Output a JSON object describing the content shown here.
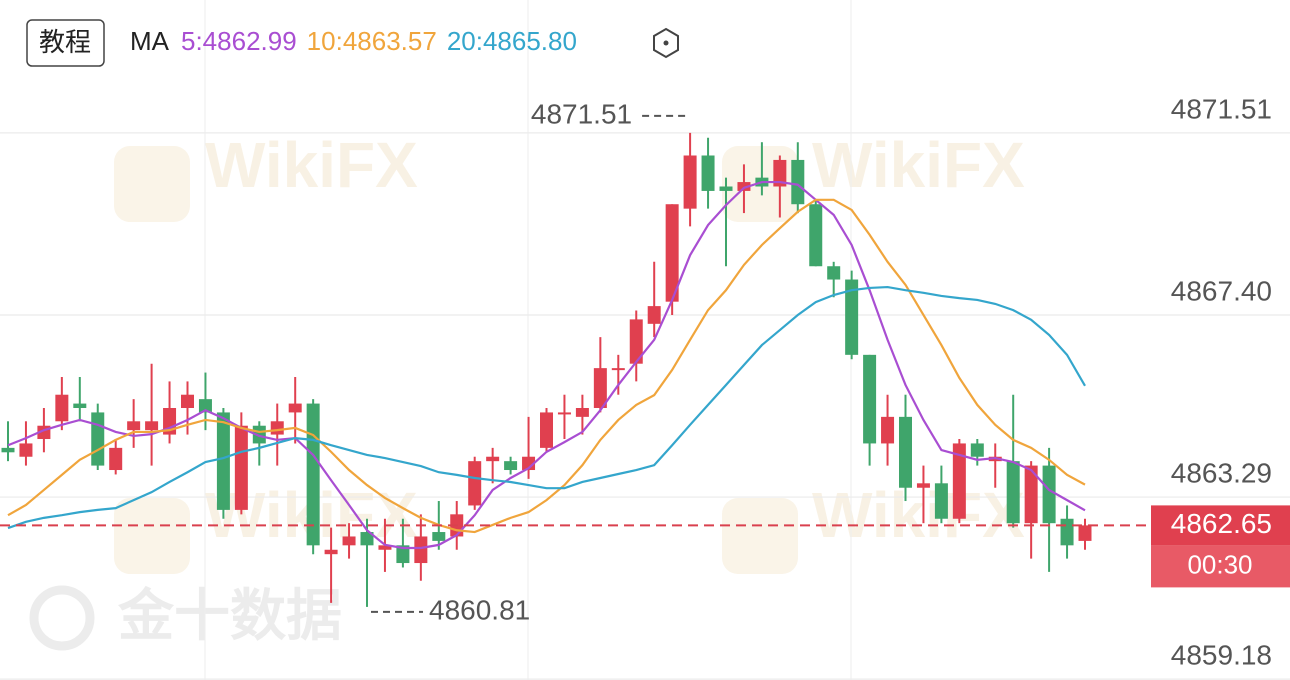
{
  "chart_data": {
    "type": "candlestick",
    "button": "教程",
    "indicator": "MA",
    "watermark": "WikiFX",
    "watermark_source": "金十数据",
    "up_color": "#e0404f",
    "down_color": "#3fa56b",
    "ylim": [
      4859.16,
      4874.51
    ],
    "yticks": [
      4859.18,
      4863.29,
      {
        "value": 4867.4,
        "label": "4867.40"
      },
      4871.51
    ],
    "grid": true,
    "high_marker": 4871.51,
    "low_marker": 4860.81,
    "last_price": 4862.65,
    "countdown": "00:30",
    "open": [
      4864.4,
      4864.2,
      4864.6,
      4865.0,
      4865.4,
      4865.2,
      4863.9,
      4864.8,
      4864.8,
      4864.7,
      4865.3,
      4865.5,
      4865.2,
      4863.0,
      4864.9,
      4864.7,
      4865.2,
      4865.4,
      4862.0,
      4862.2,
      4862.5,
      4862.1,
      4862.2,
      4861.8,
      4862.5,
      4862.4,
      4863.1,
      4864.1,
      4864.1,
      4863.9,
      4864.4,
      4865.2,
      4865.1,
      4865.3,
      4866.2,
      4866.3,
      4867.2,
      4867.7,
      4869.8,
      4871.0,
      4870.3,
      4870.2,
      4870.5,
      4870.3,
      4870.9,
      4869.9,
      4868.5,
      4868.2,
      4866.5,
      4864.5,
      4865.1,
      4863.5,
      4863.6,
      4862.8,
      4864.5,
      4864.1,
      4864.1,
      4862.7,
      4864.0,
      4862.8,
      4862.3
    ],
    "high": [
      4865.0,
      4865.0,
      4865.3,
      4866.0,
      4866.0,
      4865.4,
      4864.6,
      4865.5,
      4866.3,
      4865.9,
      4865.9,
      4866.1,
      4865.3,
      4865.2,
      4865.0,
      4865.4,
      4866.0,
      4865.5,
      4862.6,
      4862.7,
      4862.8,
      4862.8,
      4862.8,
      4862.9,
      4863.2,
      4863.2,
      4864.2,
      4864.4,
      4864.2,
      4865.1,
      4865.3,
      4865.6,
      4865.6,
      4866.9,
      4866.5,
      4867.5,
      4868.6,
      4869.9,
      4871.51,
      4871.4,
      4870.5,
      4870.8,
      4871.3,
      4871.0,
      4871.3,
      4870.0,
      4868.6,
      4868.4,
      4866.5,
      4865.6,
      4865.6,
      4864.0,
      4864.0,
      4864.6,
      4864.6,
      4864.5,
      4865.6,
      4864.1,
      4864.4,
      4863.1,
      4862.8
    ],
    "low": [
      4864.1,
      4864.0,
      4864.3,
      4864.8,
      4865.0,
      4863.9,
      4863.8,
      4864.4,
      4864.0,
      4864.5,
      4864.7,
      4864.8,
      4862.8,
      4862.9,
      4864.0,
      4864.0,
      4864.5,
      4862.0,
      4860.9,
      4861.9,
      4860.81,
      4861.6,
      4861.7,
      4861.4,
      4862.1,
      4862.1,
      4863.0,
      4863.6,
      4863.8,
      4863.7,
      4864.3,
      4864.6,
      4864.7,
      4865.2,
      4865.6,
      4865.9,
      4866.9,
      4867.4,
      4869.4,
      4869.8,
      4868.5,
      4869.7,
      4870.1,
      4869.6,
      4869.7,
      4868.5,
      4867.8,
      4866.4,
      4864.0,
      4864.0,
      4863.2,
      4862.7,
      4862.7,
      4862.7,
      4864.0,
      4863.5,
      4862.6,
      4861.9,
      4861.6,
      4861.9,
      4862.1
    ],
    "close": [
      4864.3,
      4864.5,
      4864.9,
      4865.6,
      4865.3,
      4864.0,
      4864.4,
      4865.0,
      4865.0,
      4865.3,
      4865.6,
      4865.2,
      4863.0,
      4864.9,
      4864.5,
      4865.0,
      4865.4,
      4862.2,
      4862.1,
      4862.4,
      4862.2,
      4862.2,
      4861.8,
      4862.4,
      4862.3,
      4862.9,
      4864.1,
      4864.2,
      4863.9,
      4864.2,
      4865.2,
      4865.2,
      4865.3,
      4866.2,
      4866.2,
      4867.3,
      4867.6,
      4869.9,
      4871.0,
      4870.2,
      4870.2,
      4870.4,
      4870.3,
      4870.9,
      4869.9,
      4868.5,
      4868.2,
      4866.5,
      4864.5,
      4865.1,
      4863.5,
      4863.6,
      4862.8,
      4864.5,
      4864.2,
      4864.2,
      4862.7,
      4864.0,
      4862.7,
      4862.2,
      4862.65
    ],
    "series": [
      {
        "label": "5:4862.99",
        "color": "#a94ed2",
        "values": [
          4864.46,
          4864.62,
          4864.8,
          4864.92,
          4865.03,
          4864.92,
          4864.76,
          4864.67,
          4864.71,
          4864.85,
          4865.03,
          4865.25,
          4865.07,
          4864.85,
          4864.67,
          4864.58,
          4864.62,
          4864.24,
          4863.67,
          4863.11,
          4862.54,
          4862.21,
          4862.14,
          4862.14,
          4862.21,
          4862.43,
          4862.88,
          4863.45,
          4863.72,
          4863.94,
          4864.31,
          4864.53,
          4864.76,
          4865.25,
          4865.82,
          4866.34,
          4866.84,
          4867.74,
          4868.75,
          4869.43,
          4869.88,
          4870.27,
          4870.4,
          4870.4,
          4870.34,
          4870.0,
          4869.66,
          4868.98,
          4867.96,
          4866.84,
          4865.82,
          4865.03,
          4864.35,
          4864.24,
          4864.13,
          4864.17,
          4864.08,
          4863.9,
          4863.45,
          4863.22,
          4862.99
        ]
      },
      {
        "label": "10:4863.57",
        "color": "#f0a53c",
        "values": [
          4862.88,
          4863.11,
          4863.45,
          4863.79,
          4864.13,
          4864.35,
          4864.58,
          4864.76,
          4864.76,
          4864.8,
          4864.92,
          4865.03,
          4864.98,
          4864.85,
          4864.76,
          4864.8,
          4864.85,
          4864.69,
          4864.31,
          4863.9,
          4863.56,
          4863.27,
          4863.04,
          4862.82,
          4862.66,
          4862.54,
          4862.5,
          4862.66,
          4862.82,
          4862.95,
          4863.22,
          4863.56,
          4864.01,
          4864.58,
          4865.03,
          4865.37,
          4865.59,
          4866.16,
          4866.84,
          4867.51,
          4867.96,
          4868.53,
          4868.98,
          4869.36,
          4869.73,
          4870.0,
          4870.0,
          4869.77,
          4869.21,
          4868.6,
          4868.08,
          4867.4,
          4866.72,
          4865.98,
          4865.37,
          4864.92,
          4864.58,
          4864.4,
          4864.13,
          4863.79,
          4863.57
        ]
      },
      {
        "label": "20:4865.80",
        "color": "#34a6cc",
        "values": [
          4862.59,
          4862.73,
          4862.82,
          4862.88,
          4862.95,
          4863.0,
          4863.04,
          4863.22,
          4863.4,
          4863.63,
          4863.85,
          4864.08,
          4864.17,
          4864.31,
          4864.4,
          4864.51,
          4864.62,
          4864.58,
          4864.46,
          4864.35,
          4864.24,
          4864.17,
          4864.08,
          4863.99,
          4863.85,
          4863.79,
          4863.72,
          4863.67,
          4863.63,
          4863.56,
          4863.49,
          4863.49,
          4863.63,
          4863.72,
          4863.81,
          4863.9,
          4864.01,
          4864.46,
          4864.92,
          4865.37,
          4865.82,
          4866.27,
          4866.72,
          4867.06,
          4867.4,
          4867.69,
          4867.85,
          4867.96,
          4868.01,
          4868.03,
          4867.96,
          4867.9,
          4867.83,
          4867.78,
          4867.74,
          4867.65,
          4867.51,
          4867.29,
          4866.95,
          4866.5,
          4865.8
        ]
      }
    ]
  }
}
